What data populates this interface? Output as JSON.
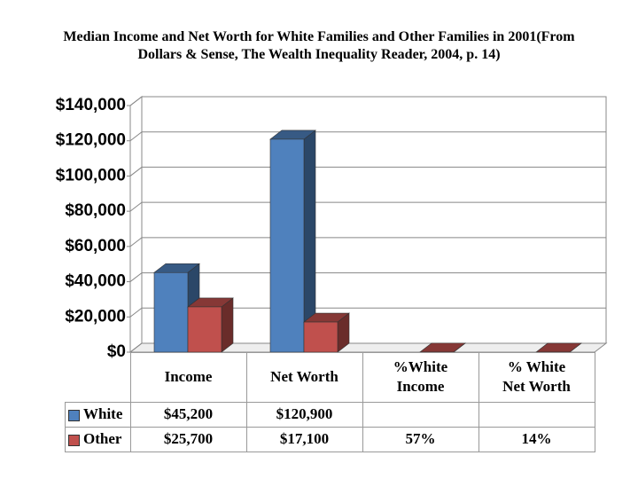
{
  "chart_data": {
    "type": "bar",
    "title": "Median Income and Net Worth for White Families and Other Families in 2001(From Dollars & Sense, The Wealth Inequality Reader, 2004, p. 14)",
    "categories": [
      "Income",
      "Net Worth",
      "%White Income",
      "% White Net Worth"
    ],
    "series": [
      {
        "name": "White",
        "color": "#4f81bd",
        "values": [
          45200,
          120900,
          null,
          null
        ],
        "value_labels": [
          "$45,200",
          "$120,900",
          null,
          null
        ]
      },
      {
        "name": "Other",
        "color": "#c0504d",
        "values": [
          25700,
          17100,
          57,
          14
        ],
        "value_labels": [
          "$25,700",
          "$17,100",
          "57%",
          "14%"
        ]
      }
    ],
    "ylim": [
      0,
      140000
    ],
    "yticks": [
      {
        "value": 0,
        "label": "$0"
      },
      {
        "value": 20000,
        "label": "$20,000"
      },
      {
        "value": 40000,
        "label": "$40,000"
      },
      {
        "value": 60000,
        "label": "$60,000"
      },
      {
        "value": 80000,
        "label": "$80,000"
      },
      {
        "value": 100000,
        "label": "$100,000"
      },
      {
        "value": 120000,
        "label": "$120,000"
      },
      {
        "value": 140000,
        "label": "$140,000"
      }
    ],
    "grid": true
  }
}
